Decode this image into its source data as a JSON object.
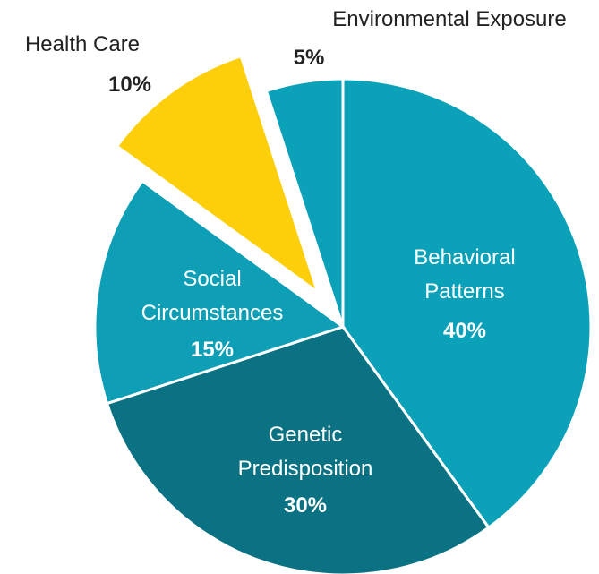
{
  "chart_data": {
    "type": "pie",
    "categories": [
      "Behavioral Patterns",
      "Genetic Predisposition",
      "Social Circumstances",
      "Health Care",
      "Environmental Exposure"
    ],
    "values": [
      40,
      30,
      15,
      10,
      5
    ],
    "value_labels": [
      "40%",
      "30%",
      "15%",
      "10%",
      "5%"
    ],
    "colors": [
      "#0ba2b9",
      "#0a7283",
      "#0e9fb6",
      "#fccf0a",
      "#0ba2b9"
    ],
    "exploded": [
      false,
      false,
      false,
      true,
      false
    ]
  }
}
